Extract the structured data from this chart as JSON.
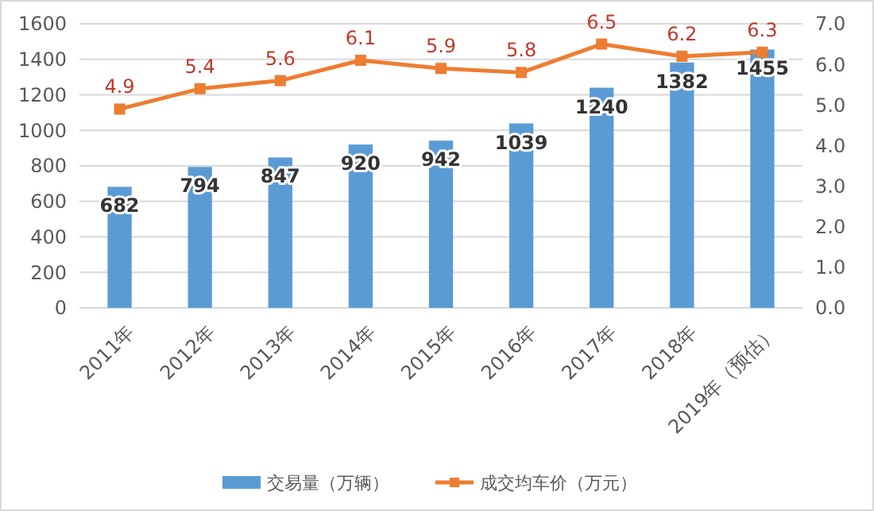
{
  "chart_data": {
    "type": "bar",
    "categories": [
      "2011年",
      "2012年",
      "2013年",
      "2014年",
      "2015年",
      "2016年",
      "2017年",
      "2018年",
      "2019年（预估）"
    ],
    "series": [
      {
        "name": "交易量（万辆）",
        "color": "#5b9bd5",
        "values": [
          682,
          794,
          847,
          920,
          942,
          1039,
          1240,
          1382,
          1455
        ]
      },
      {
        "name": "成交均车价（万元）",
        "type": "line",
        "axis": "y2",
        "color": "#ed7d31",
        "marker": "square",
        "values": [
          4.9,
          5.4,
          5.6,
          6.1,
          5.9,
          5.8,
          6.5,
          6.2,
          6.3
        ]
      }
    ],
    "ylim": [
      0,
      1600
    ],
    "yticks": [
      0,
      200,
      400,
      600,
      800,
      1000,
      1200,
      1400,
      1600
    ],
    "y2lim": [
      0,
      7
    ],
    "y2ticks": [
      {
        "value": 0,
        "label": "0.0"
      },
      {
        "value": 1,
        "label": "1.0"
      },
      {
        "value": 2,
        "label": "2.0"
      },
      {
        "value": 3,
        "label": "3.0"
      },
      {
        "value": 4,
        "label": "4.0"
      },
      {
        "value": 5,
        "label": "5.0"
      },
      {
        "value": 6,
        "label": "6.0"
      },
      {
        "value": 7,
        "label": "7.0"
      }
    ],
    "grid": "y",
    "legend": "bottom",
    "data_labels": true
  }
}
